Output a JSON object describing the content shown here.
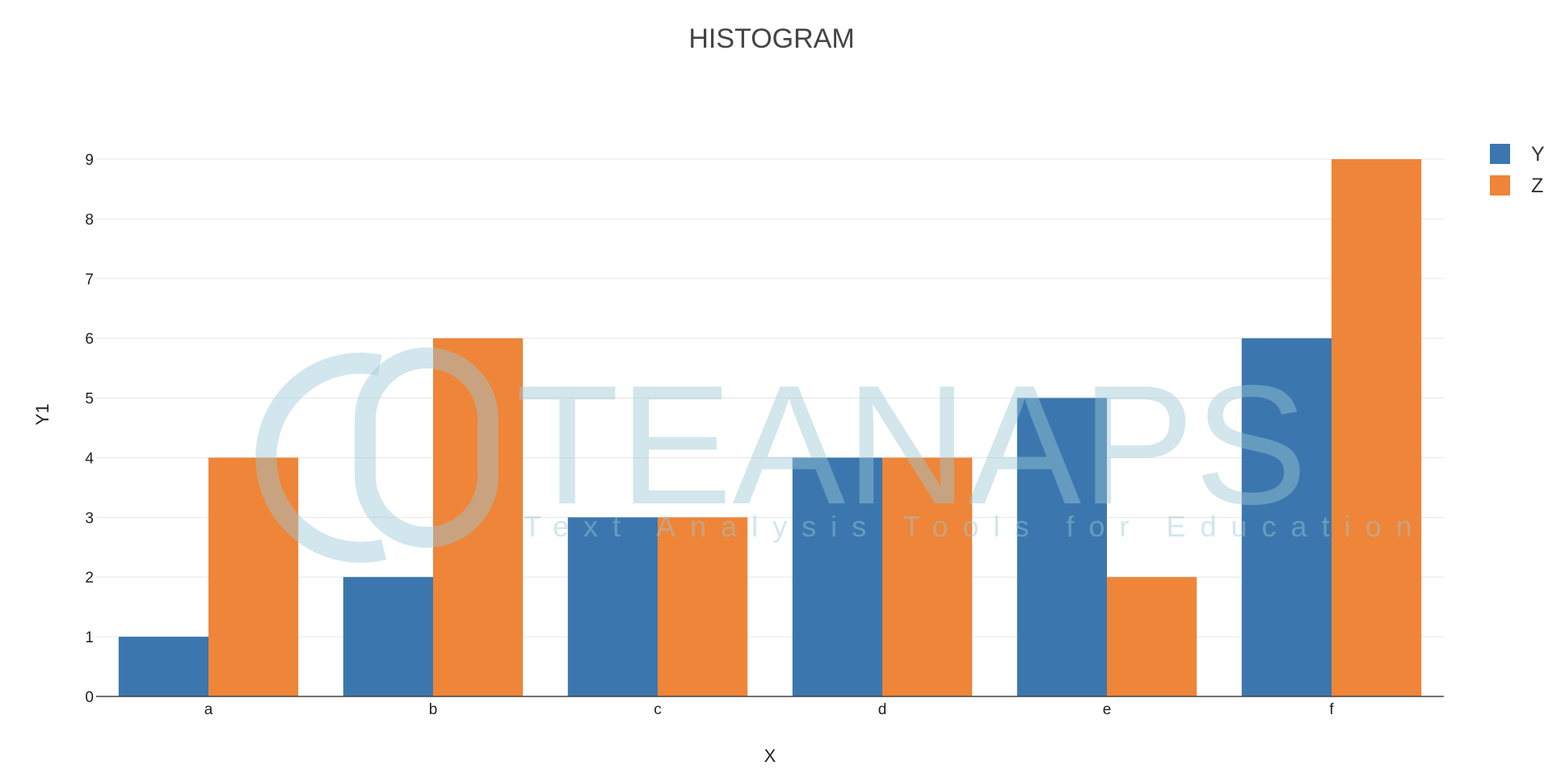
{
  "chart_data": {
    "type": "bar",
    "title": "HISTOGRAM",
    "xlabel": "X",
    "ylabel": "Y1",
    "categories": [
      "a",
      "b",
      "c",
      "d",
      "e",
      "f"
    ],
    "series": [
      {
        "name": "Y",
        "color": "#3b77ae",
        "values": [
          1,
          2,
          3,
          4,
          5,
          6
        ]
      },
      {
        "name": "Z",
        "color": "#ee8538",
        "values": [
          4,
          6,
          3,
          4,
          2,
          9
        ]
      }
    ],
    "ylim": [
      0,
      9
    ],
    "yticks": [
      0,
      1,
      2,
      3,
      4,
      5,
      6,
      7,
      8,
      9
    ],
    "grid": true,
    "legend_position": "top-right"
  },
  "watermark": {
    "brand": "TEANAPS",
    "tagline": "Text Analysis Tools for Education"
  }
}
